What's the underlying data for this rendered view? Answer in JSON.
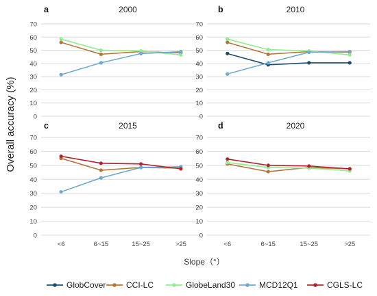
{
  "figure": {
    "ylabel": "Overall accuracy (%)",
    "xlabel": "Slope（°）"
  },
  "series_colors": {
    "GlobCover": "#1d4e6e",
    "CCI-LC": "#b5763a",
    "GlobeLand30": "#90ee90",
    "MCD12Q1": "#6fa8cf",
    "CGLS-LC": "#b3222e"
  },
  "legend": [
    "GlobCover",
    "CCI-LC",
    "GlobeLand30",
    "MCD12Q1",
    "CGLS-LC"
  ],
  "chart_data": [
    {
      "type": "line",
      "label": "a",
      "title": "2000",
      "categories": [
        "<6",
        "6~15",
        "15~25",
        ">25"
      ],
      "ylim": [
        0,
        70
      ],
      "yticks": [
        0,
        10,
        20,
        30,
        40,
        50,
        60,
        70
      ],
      "grid": true,
      "series": [
        {
          "name": "CCI-LC",
          "values": [
            56,
            47,
            49,
            48
          ]
        },
        {
          "name": "GlobeLand30",
          "values": [
            58.5,
            50,
            49.5,
            46.5
          ]
        },
        {
          "name": "MCD12Q1",
          "values": [
            31.5,
            40.5,
            47.5,
            49
          ]
        }
      ]
    },
    {
      "type": "line",
      "label": "b",
      "title": "2010",
      "categories": [
        "<6",
        "6~15",
        "15~25",
        ">25"
      ],
      "ylim": [
        0,
        70
      ],
      "yticks": [
        0,
        10,
        20,
        30,
        40,
        50,
        60,
        70
      ],
      "grid": true,
      "series": [
        {
          "name": "GlobCover",
          "values": [
            47.5,
            39,
            40.5,
            40.5
          ]
        },
        {
          "name": "CCI-LC",
          "values": [
            56,
            47,
            49,
            48.5
          ]
        },
        {
          "name": "GlobeLand30",
          "values": [
            58.5,
            50.5,
            49.5,
            46.5
          ]
        },
        {
          "name": "MCD12Q1",
          "values": [
            32,
            40.5,
            48.5,
            49
          ]
        }
      ]
    },
    {
      "type": "line",
      "label": "c",
      "title": "2015",
      "categories": [
        "<6",
        "6~15",
        "15~25",
        ">25"
      ],
      "ylim": [
        0,
        70
      ],
      "yticks": [
        0,
        10,
        20,
        30,
        40,
        50,
        60,
        70
      ],
      "grid": true,
      "series": [
        {
          "name": "CCI-LC",
          "values": [
            55,
            46.5,
            48.5,
            48
          ]
        },
        {
          "name": "MCD12Q1",
          "values": [
            31,
            41,
            48.5,
            49
          ]
        },
        {
          "name": "CGLS-LC",
          "values": [
            56.5,
            51.5,
            51,
            47.5
          ]
        }
      ]
    },
    {
      "type": "line",
      "label": "d",
      "title": "2020",
      "categories": [
        "<6",
        "6~15",
        "15~25",
        ">25"
      ],
      "ylim": [
        0,
        70
      ],
      "yticks": [
        0,
        10,
        20,
        30,
        40,
        50,
        60,
        70
      ],
      "grid": true,
      "series": [
        {
          "name": "CCI-LC",
          "values": [
            51,
            45.5,
            48.5,
            47.5
          ]
        },
        {
          "name": "GlobeLand30",
          "values": [
            52,
            48.5,
            48,
            46
          ]
        },
        {
          "name": "CGLS-LC",
          "values": [
            54.5,
            50,
            49.5,
            47.5
          ]
        }
      ]
    }
  ]
}
